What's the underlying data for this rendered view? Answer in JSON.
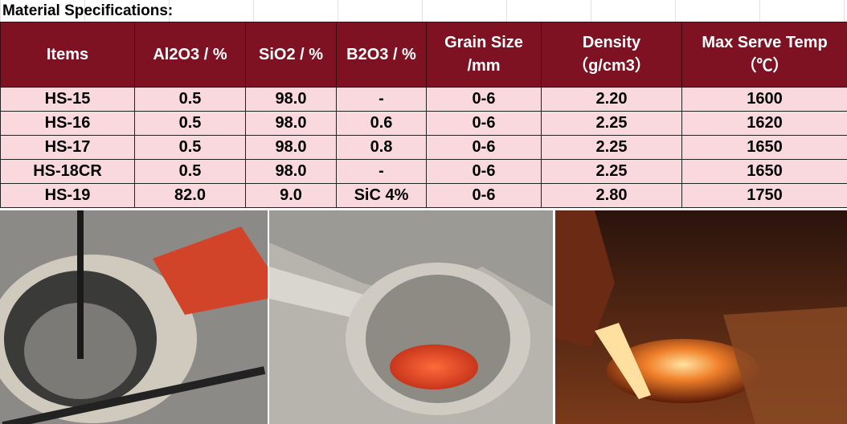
{
  "header": {
    "title": "Material Specifications:"
  },
  "table": {
    "columns": [
      [
        "Items"
      ],
      [
        "Al2O3 / %"
      ],
      [
        "SiO2 / %"
      ],
      [
        "B2O3 / %"
      ],
      [
        "Grain Size",
        "/mm"
      ],
      [
        "Density",
        "（g/cm3）"
      ],
      [
        "Max Serve Temp",
        "（℃）"
      ]
    ],
    "rows": [
      [
        "HS-15",
        "0.5",
        "98.0",
        "-",
        "0-6",
        "2.20",
        "1600"
      ],
      [
        "HS-16",
        "0.5",
        "98.0",
        "0.6",
        "0-6",
        "2.25",
        "1620"
      ],
      [
        "HS-17",
        "0.5",
        "98.0",
        "0.8",
        "0-6",
        "2.25",
        "1650"
      ],
      [
        "HS-18CR",
        "0.5",
        "98.0",
        "-",
        "0-6",
        "2.25",
        "1650"
      ],
      [
        "HS-19",
        "82.0",
        "9.0",
        "SiC 4%",
        "0-6",
        "2.80",
        "1750"
      ]
    ]
  }
}
